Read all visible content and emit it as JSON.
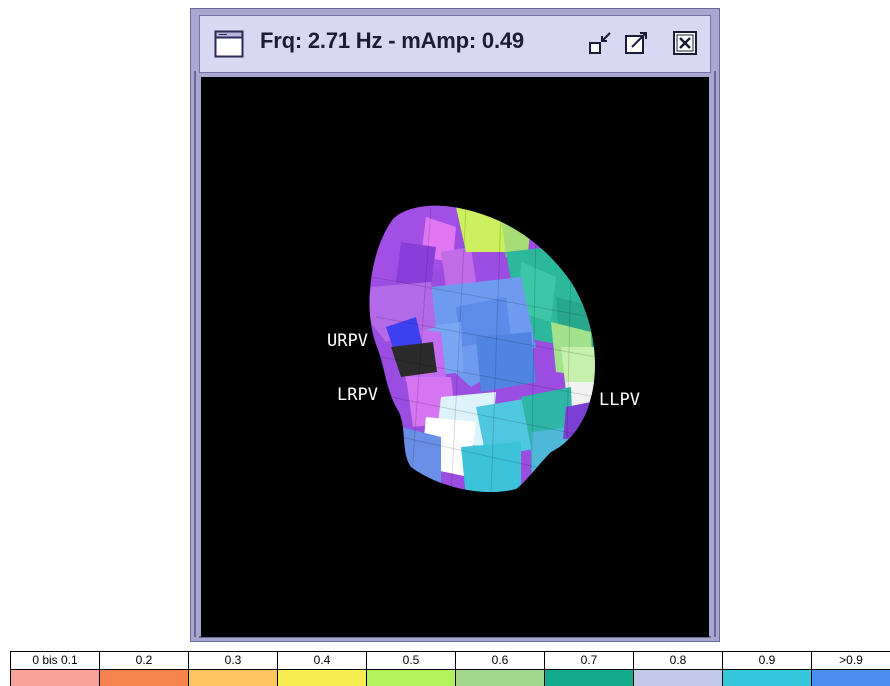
{
  "window": {
    "title": "Frq: 2.71 Hz - mAmp: 0.49",
    "icon": "window-app-icon",
    "controls": [
      {
        "name": "minimize-button",
        "icon": "minimize-icon"
      },
      {
        "name": "maximize-button",
        "icon": "maximize-icon"
      },
      {
        "name": "close-button",
        "icon": "close-icon"
      }
    ]
  },
  "view": {
    "background": "#000000",
    "labels": {
      "urpv": "URPV",
      "lrpv": "LRPV",
      "llpv": "LLPV"
    }
  },
  "legend": {
    "items": [
      {
        "label": "0 bis 0.1",
        "color": "#f7a19a"
      },
      {
        "label": "0.2",
        "color": "#f7834f"
      },
      {
        "label": "0.3",
        "color": "#fbc45e"
      },
      {
        "label": "0.4",
        "color": "#f7ef52"
      },
      {
        "label": "0.5",
        "color": "#b3f25c"
      },
      {
        "label": "0.6",
        "color": "#a3d88c"
      },
      {
        "label": "0.7",
        "color": "#12a98c"
      },
      {
        "label": "0.8",
        "color": "#c1c9e7"
      },
      {
        "label": "0.9",
        "color": "#35c8dd"
      },
      {
        "label": ">0.9",
        "color": "#4c8df2"
      }
    ]
  }
}
